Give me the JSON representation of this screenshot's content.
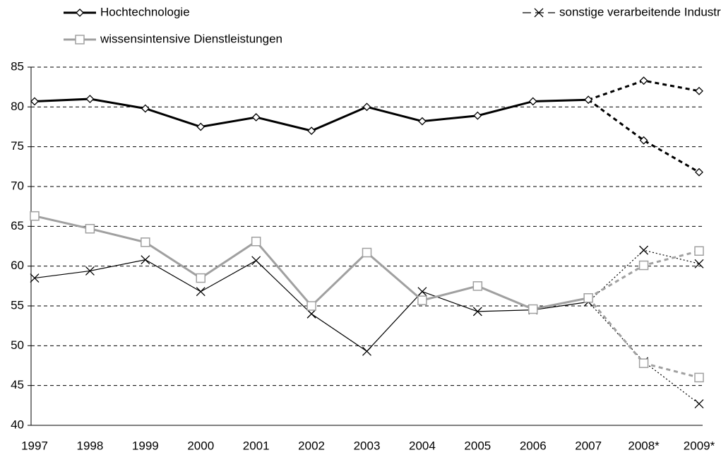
{
  "chart_data": {
    "type": "line",
    "categories": [
      "1997",
      "1998",
      "1999",
      "2000",
      "2001",
      "2002",
      "2003",
      "2004",
      "2005",
      "2006",
      "2007",
      "2008*",
      "2009*"
    ],
    "series": [
      {
        "name": "Hochtechnologie",
        "color": "#000000",
        "marker": "diamond",
        "values": [
          80.7,
          81.0,
          79.8,
          77.5,
          78.7,
          77.0,
          80.0,
          78.2,
          78.9,
          80.7,
          80.9,
          null,
          null
        ],
        "forecast": [
          [
            83.3,
            82.0
          ],
          [
            75.8,
            71.8
          ]
        ]
      },
      {
        "name": "sonstige verarbeitende Industrie",
        "color": "#000000",
        "marker": "cross",
        "values": [
          58.5,
          59.4,
          60.8,
          56.8,
          60.7,
          54.0,
          49.3,
          56.8,
          54.3,
          54.5,
          55.5,
          null,
          null
        ],
        "forecast": [
          [
            62.0,
            60.3
          ],
          [
            48.0,
            42.7
          ]
        ]
      },
      {
        "name": "wissensintensive Dienstleistungen",
        "color": "#a0a0a0",
        "marker": "square",
        "values": [
          66.3,
          64.7,
          63.0,
          58.5,
          63.1,
          55.0,
          61.7,
          55.7,
          57.5,
          54.6,
          56.0,
          null,
          null
        ],
        "forecast": [
          [
            60.1,
            61.9
          ],
          [
            47.8,
            46.0
          ]
        ]
      }
    ],
    "ylim": [
      40,
      85
    ],
    "yticks": [
      40,
      45,
      50,
      55,
      60,
      65,
      70,
      75,
      80,
      85
    ],
    "grid": true
  }
}
